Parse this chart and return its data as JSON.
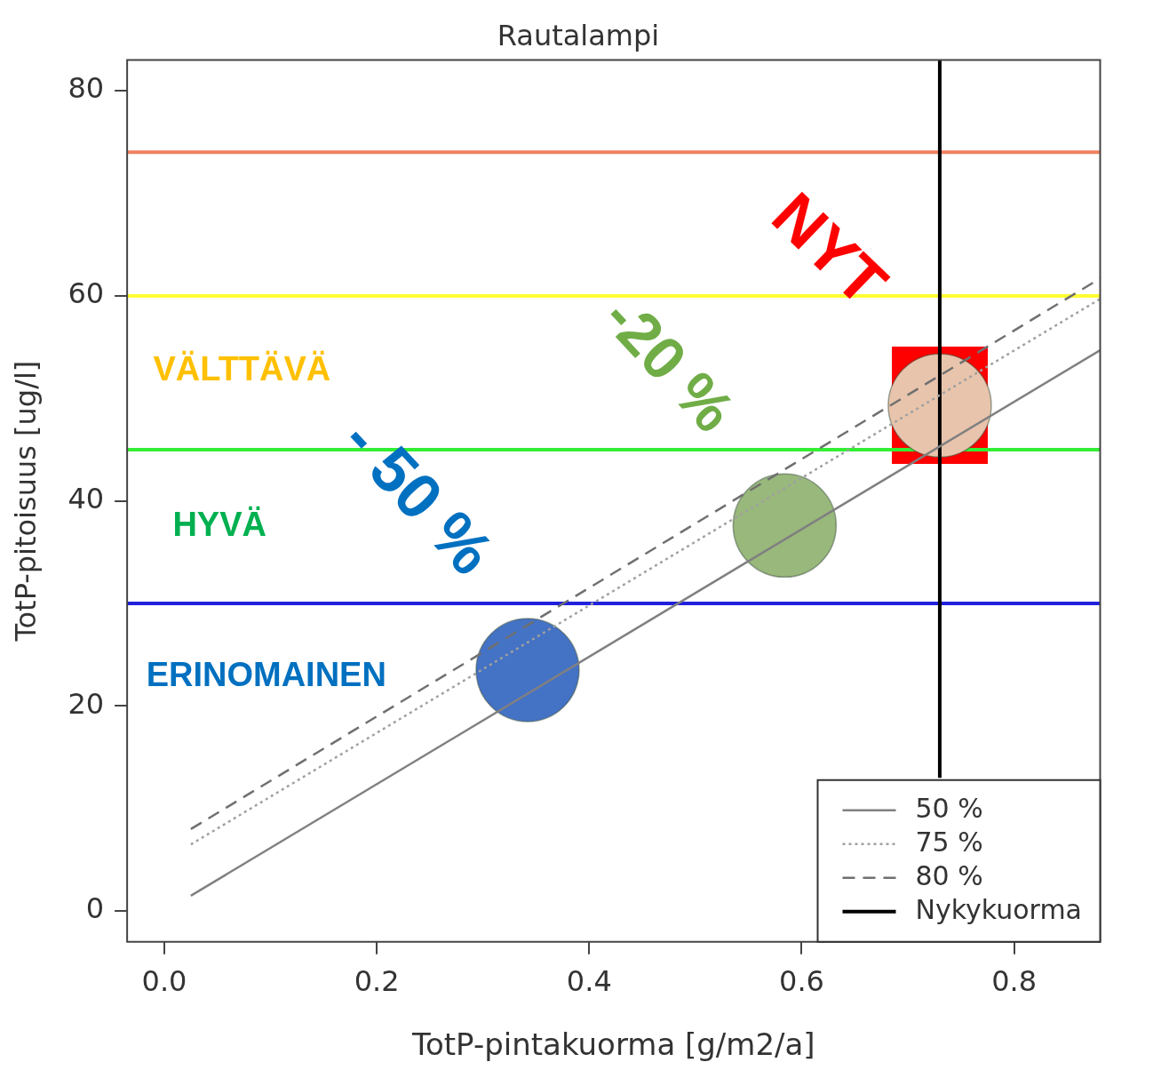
{
  "chart_data": {
    "type": "line",
    "title": "Rautalampi",
    "xlabel": "TotP-pintakuorma [g/m2/a]",
    "ylabel": "TotP-pitoisuus [ug/l]",
    "xlim": [
      -0.035,
      0.881
    ],
    "ylim": [
      -3,
      83
    ],
    "xticks": [
      {
        "value": 0,
        "label": "0.0"
      },
      0.2,
      0.4,
      0.6,
      0.8
    ],
    "yticks": [
      0,
      20,
      40,
      60,
      80
    ],
    "grid": false,
    "legend": "bottom right",
    "series": [
      {
        "name": "50 %",
        "color": "#808080",
        "line_style": "solid",
        "x": [
          0.025,
          0.881
        ],
        "values": [
          1.5,
          54.7
        ]
      },
      {
        "name": "75 %",
        "color": "#a0a0a0",
        "line_style": "dotted",
        "x": [
          0.025,
          0.881
        ],
        "values": [
          6.5,
          59.7
        ]
      },
      {
        "name": "80 %",
        "color": "#707070",
        "line_style": "dashed",
        "x": [
          0.025,
          0.881
        ],
        "values": [
          8.0,
          61.7
        ]
      },
      {
        "name": "Nykykuorma",
        "color": "#000000",
        "line_style": "solid",
        "x": [
          0.73,
          0.73
        ],
        "values": [
          13,
          83
        ]
      },
      {
        "type": "scatter",
        "marker": "circle",
        "x": [
          0.342,
          0.584,
          0.73
        ],
        "values": [
          23.5,
          37.6,
          49.3
        ],
        "colors": [
          "#4472c4",
          "#98b87c",
          "#e8c4ac"
        ]
      }
    ],
    "ref_lines": [
      {
        "axis": "y",
        "value": 74,
        "color": "#f08060"
      },
      {
        "axis": "y",
        "value": 60,
        "color": "#ffff33"
      },
      {
        "axis": "y",
        "value": 45,
        "color": "#33ee33"
      },
      {
        "axis": "y",
        "value": 30,
        "color": "#2020dd"
      }
    ],
    "annotations": [
      "VÄLTTÄVÄ",
      "HYVÄ",
      "ERINOMAINEN",
      "- 50 %",
      "-20 %",
      "NYT"
    ]
  }
}
